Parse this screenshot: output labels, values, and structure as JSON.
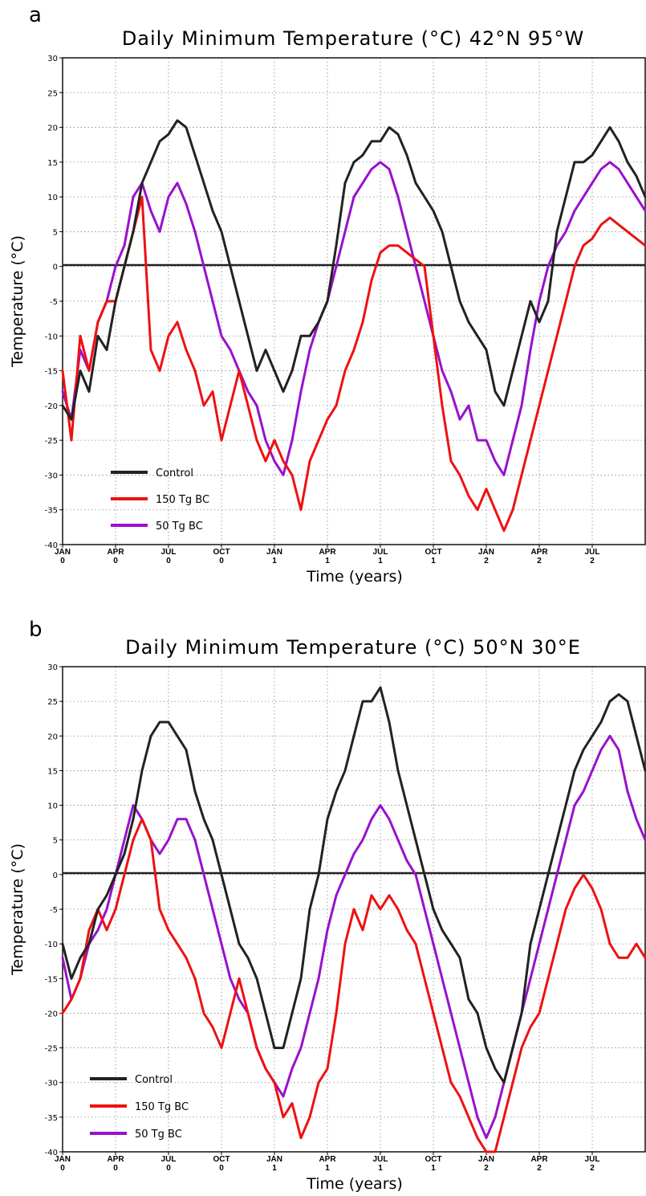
{
  "chart_data": [
    {
      "panel": "a",
      "type": "line",
      "title": "Daily Minimum Temperature (°C) 42°N 95°W",
      "xlabel": "Time (years)",
      "ylabel": "Temperature (°C)",
      "ylim": [
        -40,
        30
      ],
      "yticks": [
        30,
        25,
        20,
        15,
        10,
        5,
        0,
        -5,
        -10,
        -15,
        -20,
        -25,
        -30,
        -35,
        -40
      ],
      "xlim": [
        0,
        33
      ],
      "xticks": [
        {
          "x": 0,
          "label": [
            "JAN",
            "0"
          ]
        },
        {
          "x": 3,
          "label": [
            "APR",
            "0"
          ]
        },
        {
          "x": 6,
          "label": [
            "JUL",
            "0"
          ]
        },
        {
          "x": 9,
          "label": [
            "OCT",
            "0"
          ]
        },
        {
          "x": 12,
          "label": [
            "JAN",
            "1"
          ]
        },
        {
          "x": 15,
          "label": [
            "APR",
            "1"
          ]
        },
        {
          "x": 18,
          "label": [
            "JUL",
            "1"
          ]
        },
        {
          "x": 21,
          "label": [
            "OCT",
            "1"
          ]
        },
        {
          "x": 24,
          "label": [
            "JAN",
            "2"
          ]
        },
        {
          "x": 27,
          "label": [
            "APR",
            "2"
          ]
        },
        {
          "x": 30,
          "label": [
            "JUL",
            "2"
          ]
        }
      ],
      "grid": true,
      "legend_position": "bottom-left",
      "x_unit": "months since JAN 0",
      "series": [
        {
          "name": "Control",
          "color": "#222222",
          "x": [
            0,
            0.5,
            1,
            1.5,
            2,
            2.5,
            3,
            3.5,
            4,
            4.5,
            5,
            5.5,
            6,
            6.5,
            7,
            7.5,
            8,
            8.5,
            9,
            9.5,
            10,
            10.5,
            11,
            11.5,
            12,
            12.5,
            13,
            13.5,
            14,
            14.5,
            15,
            15.5,
            16,
            16.5,
            17,
            17.5,
            18,
            18.5,
            19,
            19.5,
            20,
            20.5,
            21,
            21.5,
            22,
            22.5,
            23,
            23.5,
            24,
            24.5,
            25,
            25.5,
            26,
            26.5,
            27,
            27.5,
            28,
            28.5,
            29,
            29.5,
            30,
            30.5,
            31,
            31.5,
            32,
            32.5,
            33
          ],
          "y": [
            -20,
            -22,
            -15,
            -18,
            -10,
            -12,
            -5,
            0,
            5,
            12,
            15,
            18,
            19,
            21,
            20,
            16,
            12,
            8,
            5,
            0,
            -5,
            -10,
            -15,
            -12,
            -15,
            -18,
            -15,
            -10,
            -10,
            -8,
            -5,
            3,
            12,
            15,
            16,
            18,
            18,
            20,
            19,
            16,
            12,
            10,
            8,
            5,
            0,
            -5,
            -8,
            -10,
            -12,
            -18,
            -20,
            -15,
            -10,
            -5,
            -8,
            -5,
            5,
            10,
            15,
            15,
            16,
            18,
            20,
            18,
            15,
            13,
            10
          ]
        },
        {
          "name": "150 Tg BC",
          "color": "#ee1111",
          "x": [
            0,
            0.5,
            1,
            1.5,
            2,
            2.5,
            3,
            3.5,
            4,
            4.5,
            5,
            5.5,
            6,
            6.5,
            7,
            7.5,
            8,
            8.5,
            9,
            9.5,
            10,
            10.5,
            11,
            11.5,
            12,
            12.5,
            13,
            13.5,
            14,
            14.5,
            15,
            15.5,
            16,
            16.5,
            17,
            17.5,
            18,
            18.5,
            19,
            19.5,
            20,
            20.5,
            21,
            21.5,
            22,
            22.5,
            23,
            23.5,
            24,
            24.5,
            25,
            25.5,
            26,
            26.5,
            27,
            27.5,
            28,
            28.5,
            29,
            29.5,
            30,
            30.5,
            31,
            31.5,
            32,
            32.5,
            33
          ],
          "y": [
            -15,
            -25,
            -10,
            -15,
            -8,
            -5,
            -5,
            0,
            5,
            10,
            -12,
            -15,
            -10,
            -8,
            -12,
            -15,
            -20,
            -18,
            -25,
            -20,
            -15,
            -20,
            -25,
            -28,
            -25,
            -28,
            -30,
            -35,
            -28,
            -25,
            -22,
            -20,
            -15,
            -12,
            -8,
            -2,
            2,
            3,
            3,
            2,
            1,
            0,
            -10,
            -20,
            -28,
            -30,
            -33,
            -35,
            -32,
            -35,
            -38,
            -35,
            -30,
            -25,
            -20,
            -15,
            -10,
            -5,
            0,
            3,
            4,
            6,
            7,
            6,
            5,
            4,
            3
          ]
        },
        {
          "name": "50 Tg BC",
          "color": "#9911cc",
          "x": [
            0,
            0.5,
            1,
            1.5,
            2,
            2.5,
            3,
            3.5,
            4,
            4.5,
            5,
            5.5,
            6,
            6.5,
            7,
            7.5,
            8,
            8.5,
            9,
            9.5,
            10,
            10.5,
            11,
            11.5,
            12,
            12.5,
            13,
            13.5,
            14,
            14.5,
            15,
            15.5,
            16,
            16.5,
            17,
            17.5,
            18,
            18.5,
            19,
            19.5,
            20,
            20.5,
            21,
            21.5,
            22,
            22.5,
            23,
            23.5,
            24,
            24.5,
            25,
            25.5,
            26,
            26.5,
            27,
            27.5,
            28,
            28.5,
            29,
            29.5,
            30,
            30.5,
            31,
            31.5,
            32,
            32.5,
            33
          ],
          "y": [
            -18,
            -22,
            -12,
            -15,
            -8,
            -5,
            0,
            3,
            10,
            12,
            8,
            5,
            10,
            12,
            9,
            5,
            0,
            -5,
            -10,
            -12,
            -15,
            -18,
            -20,
            -25,
            -28,
            -30,
            -25,
            -18,
            -12,
            -8,
            -5,
            0,
            5,
            10,
            12,
            14,
            15,
            14,
            10,
            5,
            0,
            -5,
            -10,
            -15,
            -18,
            -22,
            -20,
            -25,
            -25,
            -28,
            -30,
            -25,
            -20,
            -12,
            -5,
            0,
            3,
            5,
            8,
            10,
            12,
            14,
            15,
            14,
            12,
            10,
            8
          ]
        }
      ],
      "legend": [
        "Control",
        "150 Tg BC",
        "50 Tg BC"
      ]
    },
    {
      "panel": "b",
      "type": "line",
      "title": "Daily Minimum Temperature (°C) 50°N 30°E",
      "xlabel": "Time (years)",
      "ylabel": "Temperature (°C)",
      "ylim": [
        -40,
        30
      ],
      "yticks": [
        30,
        25,
        20,
        15,
        10,
        5,
        0,
        -5,
        -10,
        -15,
        -20,
        -25,
        -30,
        -35,
        -40
      ],
      "xlim": [
        0,
        33
      ],
      "xticks": [
        {
          "x": 0,
          "label": [
            "JAN",
            "0"
          ]
        },
        {
          "x": 3,
          "label": [
            "APR",
            "0"
          ]
        },
        {
          "x": 6,
          "label": [
            "JUL",
            "0"
          ]
        },
        {
          "x": 9,
          "label": [
            "OCT",
            "0"
          ]
        },
        {
          "x": 12,
          "label": [
            "JAN",
            "1"
          ]
        },
        {
          "x": 15,
          "label": [
            "APR",
            "1"
          ]
        },
        {
          "x": 18,
          "label": [
            "JUL",
            "1"
          ]
        },
        {
          "x": 21,
          "label": [
            "OCT",
            "1"
          ]
        },
        {
          "x": 24,
          "label": [
            "JAN",
            "2"
          ]
        },
        {
          "x": 27,
          "label": [
            "APR",
            "2"
          ]
        },
        {
          "x": 30,
          "label": [
            "JUL",
            "2"
          ]
        }
      ],
      "grid": true,
      "legend_position": "bottom-left",
      "series": [
        {
          "name": "Control",
          "color": "#222222",
          "x": [
            0,
            0.5,
            1,
            1.5,
            2,
            2.5,
            3,
            3.5,
            4,
            4.5,
            5,
            5.5,
            6,
            6.5,
            7,
            7.5,
            8,
            8.5,
            9,
            9.5,
            10,
            10.5,
            11,
            11.5,
            12,
            12.5,
            13,
            13.5,
            14,
            14.5,
            15,
            15.5,
            16,
            16.5,
            17,
            17.5,
            18,
            18.5,
            19,
            19.5,
            20,
            20.5,
            21,
            21.5,
            22,
            22.5,
            23,
            23.5,
            24,
            24.5,
            25,
            25.5,
            26,
            26.5,
            27,
            27.5,
            28,
            28.5,
            29,
            29.5,
            30,
            30.5,
            31,
            31.5,
            32,
            32.5,
            33
          ],
          "y": [
            -10,
            -15,
            -12,
            -10,
            -5,
            -3,
            0,
            3,
            8,
            15,
            20,
            22,
            22,
            20,
            18,
            12,
            8,
            5,
            0,
            -5,
            -10,
            -12,
            -15,
            -20,
            -25,
            -25,
            -20,
            -15,
            -5,
            0,
            8,
            12,
            15,
            20,
            25,
            25,
            27,
            22,
            15,
            10,
            5,
            0,
            -5,
            -8,
            -10,
            -12,
            -18,
            -20,
            -25,
            -28,
            -30,
            -25,
            -20,
            -10,
            -5,
            0,
            5,
            10,
            15,
            18,
            20,
            22,
            25,
            26,
            25,
            20,
            15
          ]
        },
        {
          "name": "150 Tg BC",
          "color": "#ee1111",
          "x": [
            0,
            0.5,
            1,
            1.5,
            2,
            2.5,
            3,
            3.5,
            4,
            4.5,
            5,
            5.5,
            6,
            6.5,
            7,
            7.5,
            8,
            8.5,
            9,
            9.5,
            10,
            10.5,
            11,
            11.5,
            12,
            12.5,
            13,
            13.5,
            14,
            14.5,
            15,
            15.5,
            16,
            16.5,
            17,
            17.5,
            18,
            18.5,
            19,
            19.5,
            20,
            20.5,
            21,
            21.5,
            22,
            22.5,
            23,
            23.5,
            24,
            24.5,
            25,
            25.5,
            26,
            26.5,
            27,
            27.5,
            28,
            28.5,
            29,
            29.5,
            30,
            30.5,
            31,
            31.5,
            32,
            32.5,
            33
          ],
          "y": [
            -20,
            -18,
            -15,
            -8,
            -5,
            -8,
            -5,
            0,
            5,
            8,
            5,
            -5,
            -8,
            -10,
            -12,
            -15,
            -20,
            -22,
            -25,
            -20,
            -15,
            -20,
            -25,
            -28,
            -30,
            -35,
            -33,
            -38,
            -35,
            -30,
            -28,
            -20,
            -10,
            -5,
            -8,
            -3,
            -5,
            -3,
            -5,
            -8,
            -10,
            -15,
            -20,
            -25,
            -30,
            -32,
            -35,
            -38,
            -40,
            -40,
            -35,
            -30,
            -25,
            -22,
            -20,
            -15,
            -10,
            -5,
            -2,
            0,
            -2,
            -5,
            -10,
            -12,
            -12,
            -10,
            -12
          ]
        },
        {
          "name": "50 Tg BC",
          "color": "#9911cc",
          "x": [
            0,
            0.5,
            1,
            1.5,
            2,
            2.5,
            3,
            3.5,
            4,
            4.5,
            5,
            5.5,
            6,
            6.5,
            7,
            7.5,
            8,
            8.5,
            9,
            9.5,
            10,
            10.5,
            11,
            11.5,
            12,
            12.5,
            13,
            13.5,
            14,
            14.5,
            15,
            15.5,
            16,
            16.5,
            17,
            17.5,
            18,
            18.5,
            19,
            19.5,
            20,
            20.5,
            21,
            21.5,
            22,
            22.5,
            23,
            23.5,
            24,
            24.5,
            25,
            25.5,
            26,
            26.5,
            27,
            27.5,
            28,
            28.5,
            29,
            29.5,
            30,
            30.5,
            31,
            31.5,
            32,
            32.5,
            33
          ],
          "y": [
            -12,
            -18,
            -15,
            -10,
            -8,
            -5,
            0,
            5,
            10,
            8,
            5,
            3,
            5,
            8,
            8,
            5,
            0,
            -5,
            -10,
            -15,
            -18,
            -20,
            -25,
            -28,
            -30,
            -32,
            -28,
            -25,
            -20,
            -15,
            -8,
            -3,
            0,
            3,
            5,
            8,
            10,
            8,
            5,
            2,
            0,
            -5,
            -10,
            -15,
            -20,
            -25,
            -30,
            -35,
            -38,
            -35,
            -30,
            -25,
            -20,
            -15,
            -10,
            -5,
            0,
            5,
            10,
            12,
            15,
            18,
            20,
            18,
            12,
            8,
            5
          ]
        }
      ],
      "legend": [
        "Control",
        "150 Tg BC",
        "50 Tg BC"
      ]
    }
  ]
}
